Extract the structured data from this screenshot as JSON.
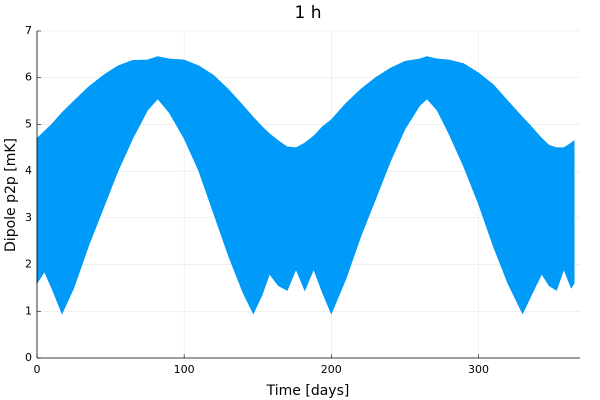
{
  "chart_data": {
    "type": "band",
    "title": "1 h",
    "x_label": "Time [days]",
    "y_label": "Dipole p2p [mK]",
    "color": "#009af9",
    "grid": true,
    "xlim": [
      0,
      369
    ],
    "xticks": [
      0,
      100,
      200,
      300
    ],
    "ylim": [
      0,
      7
    ],
    "yticks": [
      0,
      1,
      2,
      3,
      4,
      5,
      6,
      7
    ],
    "x": [
      0,
      5,
      10,
      17,
      25,
      35,
      45,
      55,
      65,
      75,
      82,
      90,
      100,
      110,
      120,
      130,
      140,
      147,
      153,
      158,
      164,
      170,
      176,
      182,
      188,
      194,
      200,
      210,
      220,
      230,
      240,
      250,
      260,
      265,
      272,
      280,
      290,
      300,
      310,
      320,
      330,
      336,
      343,
      348,
      353,
      358,
      363,
      365
    ],
    "upper": [
      4.7,
      4.85,
      5.0,
      5.25,
      5.5,
      5.8,
      6.05,
      6.25,
      6.37,
      6.38,
      6.45,
      6.4,
      6.38,
      6.25,
      6.05,
      5.75,
      5.4,
      5.15,
      4.95,
      4.8,
      4.65,
      4.52,
      4.5,
      4.6,
      4.75,
      4.95,
      5.1,
      5.45,
      5.75,
      6.0,
      6.2,
      6.35,
      6.4,
      6.45,
      6.4,
      6.38,
      6.3,
      6.1,
      5.85,
      5.5,
      5.15,
      4.95,
      4.7,
      4.55,
      4.5,
      4.5,
      4.6,
      4.65
    ],
    "lower": [
      1.6,
      1.85,
      1.5,
      0.95,
      1.5,
      2.4,
      3.2,
      4.0,
      4.7,
      5.3,
      5.55,
      5.25,
      4.7,
      4.0,
      3.1,
      2.2,
      1.4,
      0.95,
      1.35,
      1.8,
      1.55,
      1.45,
      1.9,
      1.45,
      1.9,
      1.4,
      0.95,
      1.7,
      2.6,
      3.4,
      4.2,
      4.9,
      5.4,
      5.55,
      5.3,
      4.8,
      4.1,
      3.3,
      2.4,
      1.6,
      0.95,
      1.35,
      1.8,
      1.55,
      1.45,
      1.9,
      1.5,
      1.6
    ]
  }
}
